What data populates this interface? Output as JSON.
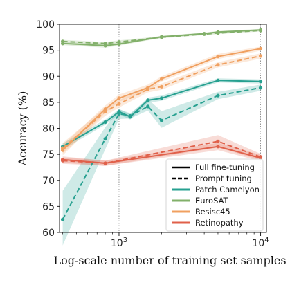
{
  "chart_data": {
    "type": "line",
    "x_scale": "log",
    "xlabel": "Log-scale number of training set samples",
    "ylabel": "Accuracy (%)",
    "xlim": [
      380,
      11000
    ],
    "ylim": [
      60,
      100
    ],
    "y_ticks": [
      60,
      65,
      70,
      75,
      80,
      85,
      90,
      95,
      100
    ],
    "x_ticks": [
      {
        "value": 1000,
        "base": "10",
        "exp": "3"
      },
      {
        "value": 10000,
        "base": "10",
        "exp": "4"
      }
    ],
    "grid": "major vertical dotted",
    "legend_position": "bottom-right",
    "style_legend": [
      {
        "label": "Full fine-tuning",
        "dash": "solid"
      },
      {
        "label": "Prompt tuning",
        "dash": "dashed"
      }
    ],
    "series": [
      {
        "name": "Patch Camelyon",
        "color": "#26a090",
        "full": {
          "x": [
            400,
            800,
            1000,
            1200,
            1600,
            2000,
            5000,
            10000
          ],
          "y": [
            76.5,
            81.2,
            83.2,
            82.2,
            85.4,
            85.8,
            89.2,
            89.0
          ]
        },
        "full_band": {
          "lower": [
            75.9,
            80.7,
            82.7,
            81.7,
            84.9,
            85.3,
            88.8,
            88.6
          ],
          "upper": [
            77.1,
            81.7,
            83.7,
            82.7,
            85.9,
            86.3,
            89.6,
            89.4
          ]
        },
        "prompt": {
          "x": [
            400,
            800,
            1000,
            1200,
            1600,
            2000,
            5000,
            10000
          ],
          "y": [
            62.5,
            78.0,
            82.8,
            82.4,
            84.2,
            81.5,
            86.3,
            87.8
          ]
        },
        "prompt_band": {
          "lower": [
            57.5,
            76.0,
            81.8,
            81.9,
            83.4,
            80.1,
            85.6,
            87.2
          ],
          "upper": [
            68.0,
            80.2,
            83.7,
            82.9,
            85.6,
            83.3,
            87.0,
            88.4
          ]
        }
      },
      {
        "name": "EuroSAT",
        "color": "#82b06a",
        "full": {
          "x": [
            400,
            800,
            1000,
            2000,
            4000,
            5000,
            10000
          ],
          "y": [
            96.3,
            95.9,
            96.2,
            97.6,
            98.2,
            98.5,
            98.9
          ]
        },
        "full_band": {
          "lower": [
            96.0,
            95.5,
            95.9,
            97.4,
            98.0,
            98.3,
            98.7
          ],
          "upper": [
            96.6,
            96.3,
            96.5,
            97.8,
            98.4,
            98.7,
            99.1
          ]
        },
        "prompt": {
          "x": [
            400,
            800,
            1000,
            2000,
            4000,
            5000,
            10000
          ],
          "y": [
            96.7,
            96.3,
            96.6,
            97.5,
            98.1,
            98.3,
            98.8
          ]
        },
        "prompt_band": {
          "lower": [
            96.4,
            96.0,
            96.3,
            97.3,
            97.9,
            98.1,
            98.6
          ],
          "upper": [
            97.0,
            96.6,
            96.9,
            97.7,
            98.3,
            98.5,
            99.0
          ]
        }
      },
      {
        "name": "Resisc45",
        "color": "#f0a060",
        "full": {
          "x": [
            400,
            800,
            1000,
            1600,
            2000,
            5000,
            10000
          ],
          "y": [
            75.8,
            83.7,
            85.8,
            87.8,
            89.5,
            93.8,
            95.3
          ]
        },
        "full_band": {
          "lower": [
            74.8,
            83.0,
            85.1,
            87.2,
            89.0,
            93.3,
            94.9
          ],
          "upper": [
            76.8,
            84.4,
            86.5,
            88.4,
            90.0,
            94.3,
            95.7
          ]
        },
        "prompt": {
          "x": [
            400,
            800,
            1000,
            1600,
            2000,
            5000,
            10000
          ],
          "y": [
            76.2,
            83.2,
            84.7,
            87.5,
            88.0,
            92.2,
            93.9
          ]
        },
        "prompt_band": {
          "lower": [
            75.2,
            82.4,
            84.0,
            86.9,
            87.4,
            91.7,
            93.4
          ],
          "upper": [
            77.2,
            84.0,
            85.4,
            88.1,
            88.6,
            92.7,
            94.4
          ]
        }
      },
      {
        "name": "Retinopathy",
        "color": "#e0604a",
        "full": {
          "x": [
            400,
            800,
            5000,
            10000
          ],
          "y": [
            74.0,
            73.3,
            76.5,
            74.3
          ]
        },
        "full_band": {
          "lower": [
            73.4,
            72.8,
            75.8,
            73.7
          ],
          "upper": [
            74.6,
            73.8,
            77.2,
            74.9
          ]
        },
        "prompt": {
          "x": [
            400,
            800,
            5000,
            10000
          ],
          "y": [
            73.8,
            73.3,
            77.5,
            74.5
          ]
        },
        "prompt_band": {
          "lower": [
            73.2,
            72.8,
            76.3,
            73.9
          ],
          "upper": [
            74.4,
            73.8,
            78.7,
            75.1
          ]
        }
      }
    ]
  }
}
